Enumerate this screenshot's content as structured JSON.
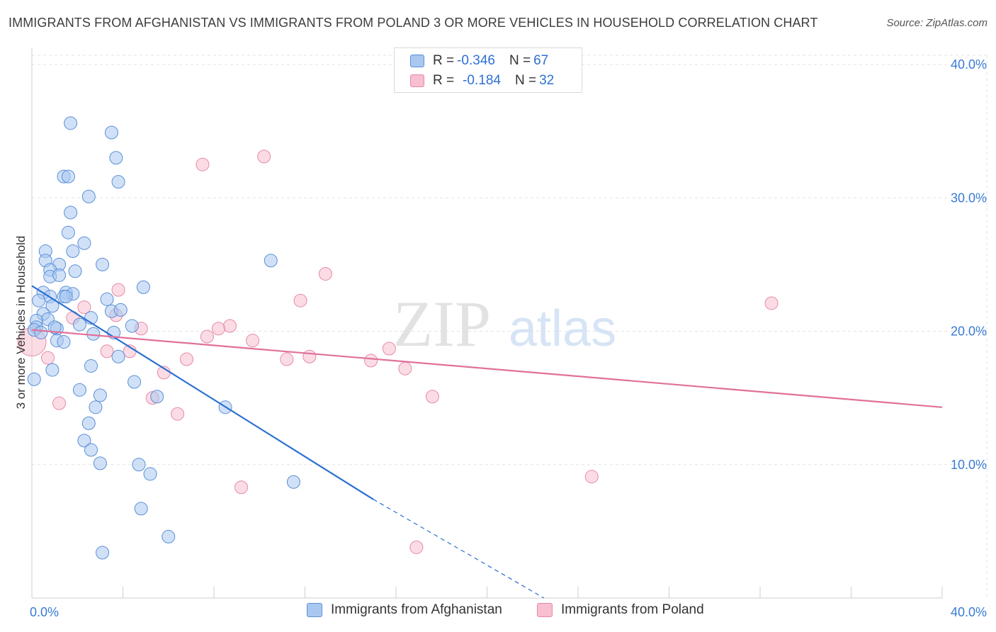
{
  "header": {
    "title": "IMMIGRANTS FROM AFGHANISTAN VS IMMIGRANTS FROM POLAND 3 OR MORE VEHICLES IN HOUSEHOLD CORRELATION CHART",
    "source": "Source: ZipAtlas.com"
  },
  "watermark": {
    "zip": "ZIP",
    "atlas": "atlas"
  },
  "legend": {
    "afghanistan": {
      "r_label": "R = ",
      "r_value": "-0.346",
      "n_label": "N = ",
      "n_value": "67"
    },
    "poland": {
      "r_label": "R = ",
      "r_value": "-0.184",
      "n_label": "N = ",
      "n_value": "32"
    }
  },
  "colors": {
    "afghanistan_fill": "#a9c8f0",
    "afghanistan_stroke": "#5b8fd8",
    "afghanistan_line": "#2a6fd0",
    "poland_fill": "#f7bfd0",
    "poland_stroke": "#e58aa6",
    "poland_line": "#e0709a",
    "axis_label": "#3a7bd5",
    "grid": "#e3e3e3"
  },
  "chart_data": {
    "type": "scatter",
    "title": "IMMIGRANTS FROM AFGHANISTAN VS IMMIGRANTS FROM POLAND 3 OR MORE VEHICLES IN HOUSEHOLD CORRELATION CHART",
    "xlabel": "",
    "ylabel": "3 or more Vehicles in Household",
    "xlim": [
      0,
      40
    ],
    "ylim": [
      0,
      40
    ],
    "x_tick_labels": [
      "0.0%",
      "40.0%"
    ],
    "y_ticks": [
      10,
      20,
      30,
      40
    ],
    "y_tick_labels": [
      "10.0%",
      "20.0%",
      "30.0%",
      "40.0%"
    ],
    "grid": true,
    "legend_position": "top-center",
    "series": [
      {
        "name": "Immigrants from Afghanistan",
        "r": -0.346,
        "n": 67,
        "trend": {
          "x0": 0.0,
          "y0": 23.4,
          "x1": 15.0,
          "y1": 7.4,
          "dash_to_x": 22.5,
          "dash_to_y": -0.4
        },
        "points": [
          [
            1.7,
            35.6
          ],
          [
            3.5,
            34.9
          ],
          [
            3.7,
            33.0
          ],
          [
            1.4,
            31.6
          ],
          [
            1.6,
            31.6
          ],
          [
            3.8,
            31.2
          ],
          [
            2.5,
            30.1
          ],
          [
            1.7,
            28.9
          ],
          [
            1.6,
            27.4
          ],
          [
            2.3,
            26.6
          ],
          [
            0.6,
            26.0
          ],
          [
            1.8,
            26.0
          ],
          [
            0.6,
            25.3
          ],
          [
            1.2,
            25.0
          ],
          [
            3.1,
            25.0
          ],
          [
            10.5,
            25.3
          ],
          [
            0.8,
            24.6
          ],
          [
            1.9,
            24.5
          ],
          [
            0.8,
            24.1
          ],
          [
            1.2,
            24.2
          ],
          [
            4.9,
            23.3
          ],
          [
            0.5,
            22.9
          ],
          [
            1.5,
            22.9
          ],
          [
            1.8,
            22.8
          ],
          [
            0.8,
            22.6
          ],
          [
            1.4,
            22.6
          ],
          [
            1.5,
            22.6
          ],
          [
            3.3,
            22.4
          ],
          [
            0.3,
            22.3
          ],
          [
            0.9,
            21.9
          ],
          [
            3.5,
            21.5
          ],
          [
            3.9,
            21.6
          ],
          [
            0.5,
            21.3
          ],
          [
            2.6,
            21.0
          ],
          [
            0.7,
            20.9
          ],
          [
            0.2,
            20.8
          ],
          [
            2.1,
            20.5
          ],
          [
            4.4,
            20.4
          ],
          [
            0.2,
            20.3
          ],
          [
            1.1,
            20.2
          ],
          [
            3.6,
            19.9
          ],
          [
            2.7,
            19.8
          ],
          [
            1.1,
            19.3
          ],
          [
            1.4,
            19.2
          ],
          [
            3.8,
            18.1
          ],
          [
            2.6,
            17.4
          ],
          [
            0.9,
            17.1
          ],
          [
            0.1,
            16.4
          ],
          [
            4.5,
            16.2
          ],
          [
            2.1,
            15.6
          ],
          [
            3.0,
            15.2
          ],
          [
            5.5,
            15.1
          ],
          [
            8.5,
            14.3
          ],
          [
            2.8,
            14.3
          ],
          [
            2.5,
            13.1
          ],
          [
            2.3,
            11.8
          ],
          [
            2.6,
            11.1
          ],
          [
            3.0,
            10.1
          ],
          [
            4.7,
            10.0
          ],
          [
            5.2,
            9.3
          ],
          [
            11.5,
            8.7
          ],
          [
            4.8,
            6.7
          ],
          [
            6.0,
            4.6
          ],
          [
            3.1,
            3.4
          ],
          [
            0.1,
            20.1
          ],
          [
            0.4,
            19.9
          ],
          [
            1.0,
            20.3
          ]
        ]
      },
      {
        "name": "Immigrants from Poland",
        "r": -0.184,
        "n": 32,
        "trend": {
          "x0": 0.0,
          "y0": 20.1,
          "x1": 40.0,
          "y1": 14.3
        },
        "points": [
          [
            10.2,
            33.1
          ],
          [
            7.5,
            32.5
          ],
          [
            12.9,
            24.3
          ],
          [
            32.5,
            22.1
          ],
          [
            11.8,
            22.3
          ],
          [
            3.8,
            23.1
          ],
          [
            2.3,
            21.8
          ],
          [
            3.7,
            21.2
          ],
          [
            1.8,
            21.0
          ],
          [
            8.7,
            20.4
          ],
          [
            4.8,
            20.2
          ],
          [
            8.2,
            20.2
          ],
          [
            7.7,
            19.6
          ],
          [
            9.7,
            19.3
          ],
          [
            0.0,
            19.2
          ],
          [
            15.7,
            18.7
          ],
          [
            4.3,
            18.5
          ],
          [
            3.3,
            18.5
          ],
          [
            12.2,
            18.1
          ],
          [
            0.7,
            18.0
          ],
          [
            6.8,
            17.9
          ],
          [
            11.2,
            17.9
          ],
          [
            14.9,
            17.8
          ],
          [
            16.4,
            17.2
          ],
          [
            5.8,
            16.9
          ],
          [
            17.6,
            15.1
          ],
          [
            5.3,
            15.0
          ],
          [
            1.2,
            14.6
          ],
          [
            6.4,
            13.8
          ],
          [
            24.6,
            9.1
          ],
          [
            9.2,
            8.3
          ],
          [
            16.9,
            3.8
          ]
        ]
      }
    ]
  },
  "bottom_legend": {
    "afghanistan": "Immigrants from Afghanistan",
    "poland": "Immigrants from Poland"
  }
}
